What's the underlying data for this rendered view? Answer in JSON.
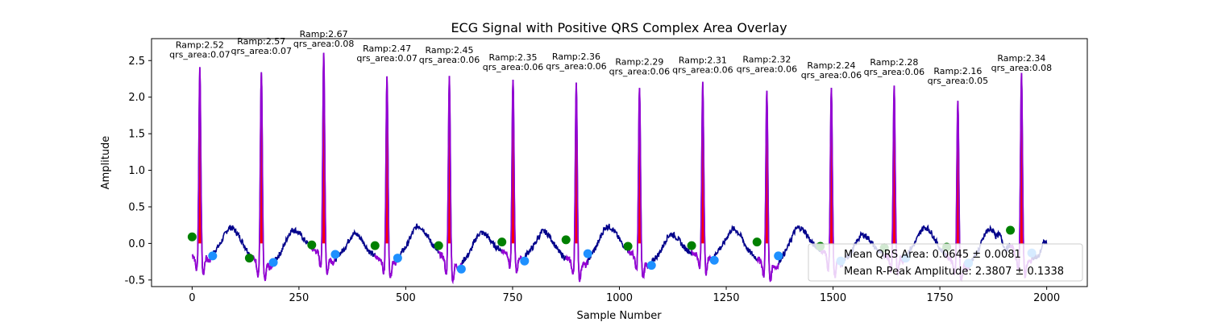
{
  "chart_data": {
    "type": "line",
    "title": "ECG Signal with Positive QRS Complex Area Overlay",
    "xlabel": "Sample Number",
    "ylabel": "Amplitude",
    "xlim": [
      -95,
      2095
    ],
    "ylim": [
      -0.59,
      2.8
    ],
    "xticks": [
      0,
      250,
      500,
      750,
      1000,
      1250,
      1500,
      1750,
      2000
    ],
    "yticks": [
      -0.5,
      0.0,
      0.5,
      1.0,
      1.5,
      2.0,
      2.5
    ],
    "grid": false,
    "colors": {
      "signal": "#00008b",
      "qrs_line": "#9400d3",
      "qrs_fill": "#ff0000",
      "onset_marker": "#008000",
      "offset_marker": "#1e90ff"
    },
    "beats": [
      {
        "r_sample": 18,
        "r_amp": 2.52,
        "area": 0.07,
        "label": "Ramp:2.52\nqrs_area:0.07"
      },
      {
        "r_sample": 162,
        "r_amp": 2.57,
        "area": 0.07,
        "label": "Ramp:2.57\nqrs_area:0.07"
      },
      {
        "r_sample": 308,
        "r_amp": 2.67,
        "area": 0.08,
        "label": "Ramp:2.67\nqrs_area:0.08"
      },
      {
        "r_sample": 456,
        "r_amp": 2.47,
        "area": 0.07,
        "label": "Ramp:2.47\nqrs_area:0.07"
      },
      {
        "r_sample": 602,
        "r_amp": 2.45,
        "area": 0.06,
        "label": "Ramp:2.45\nqrs_area:0.06"
      },
      {
        "r_sample": 751,
        "r_amp": 2.35,
        "area": 0.06,
        "label": "Ramp:2.35\nqrs_area:0.06"
      },
      {
        "r_sample": 899,
        "r_amp": 2.36,
        "area": 0.06,
        "label": "Ramp:2.36\nqrs_area:0.06"
      },
      {
        "r_sample": 1047,
        "r_amp": 2.29,
        "area": 0.06,
        "label": "Ramp:2.29\nqrs_area:0.06"
      },
      {
        "r_sample": 1195,
        "r_amp": 2.31,
        "area": 0.06,
        "label": "Ramp:2.31\nqrs_area:0.06"
      },
      {
        "r_sample": 1345,
        "r_amp": 2.32,
        "area": 0.06,
        "label": "Ramp:2.32\nqrs_area:0.06"
      },
      {
        "r_sample": 1496,
        "r_amp": 2.24,
        "area": 0.06,
        "label": "Ramp:2.24\nqrs_area:0.06"
      },
      {
        "r_sample": 1643,
        "r_amp": 2.28,
        "area": 0.06,
        "label": "Ramp:2.28\nqrs_area:0.06"
      },
      {
        "r_sample": 1792,
        "r_amp": 2.16,
        "area": 0.05,
        "label": "Ramp:2.16\nqrs_area:0.05"
      },
      {
        "r_sample": 1941,
        "r_amp": 2.34,
        "area": 0.08,
        "label": "Ramp:2.34\nqrs_area:0.08"
      }
    ],
    "onset_points": [
      [
        0,
        0.09
      ],
      [
        134,
        -0.2
      ],
      [
        280,
        -0.02
      ],
      [
        428,
        -0.03
      ],
      [
        577,
        -0.03
      ],
      [
        725,
        0.02
      ],
      [
        875,
        0.05
      ],
      [
        1020,
        -0.04
      ],
      [
        1169,
        -0.03
      ],
      [
        1322,
        0.02
      ],
      [
        1470,
        -0.04
      ],
      [
        1620,
        -0.06
      ],
      [
        1766,
        -0.05
      ],
      [
        1915,
        0.18
      ]
    ],
    "offset_points": [
      [
        48,
        -0.17
      ],
      [
        190,
        -0.26
      ],
      [
        335,
        -0.15
      ],
      [
        481,
        -0.2
      ],
      [
        630,
        -0.35
      ],
      [
        778,
        -0.24
      ],
      [
        926,
        -0.14
      ],
      [
        1075,
        -0.3
      ],
      [
        1222,
        -0.23
      ],
      [
        1372,
        -0.17
      ],
      [
        1518,
        -0.24
      ],
      [
        1670,
        -0.2
      ],
      [
        1817,
        -0.27
      ],
      [
        1965,
        -0.13
      ]
    ],
    "legend": {
      "location": "lower right",
      "entries": [
        "Mean QRS Area: 0.0645 ± 0.0081",
        "Mean R-Peak Amplitude: 2.3807 ± 0.1338"
      ]
    },
    "signal_range": [
      0,
      2000
    ]
  }
}
